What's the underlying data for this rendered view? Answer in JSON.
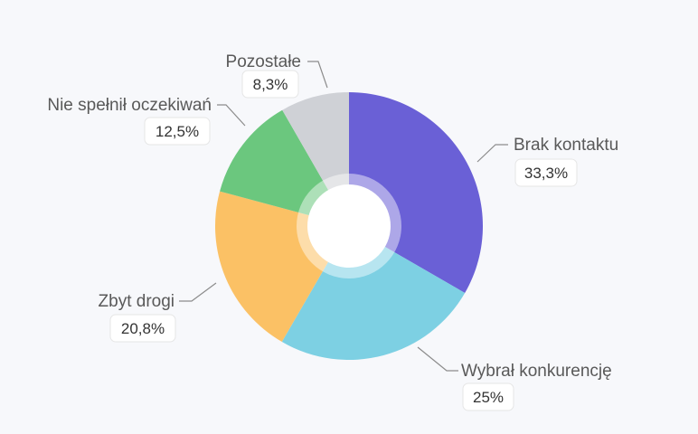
{
  "chart_data": {
    "type": "pie",
    "title": "",
    "slices": [
      {
        "label": "Brak kontaktu",
        "value": 33.3,
        "value_label": "33,3%",
        "color": "#6a60d6"
      },
      {
        "label": "Wybrał konkurencję",
        "value": 25,
        "value_label": "25%",
        "color": "#7dd0e3"
      },
      {
        "label": "Zbyt drogi",
        "value": 20.8,
        "value_label": "20,8%",
        "color": "#fbc165"
      },
      {
        "label": "Nie spełnił oczekiwań",
        "value": 12.5,
        "value_label": "12,5%",
        "color": "#6bc77e"
      },
      {
        "label": "Pozostałe",
        "value": 8.3,
        "value_label": "8,3%",
        "color": "#cfd1d6"
      }
    ],
    "legend": "none",
    "donut": true
  }
}
